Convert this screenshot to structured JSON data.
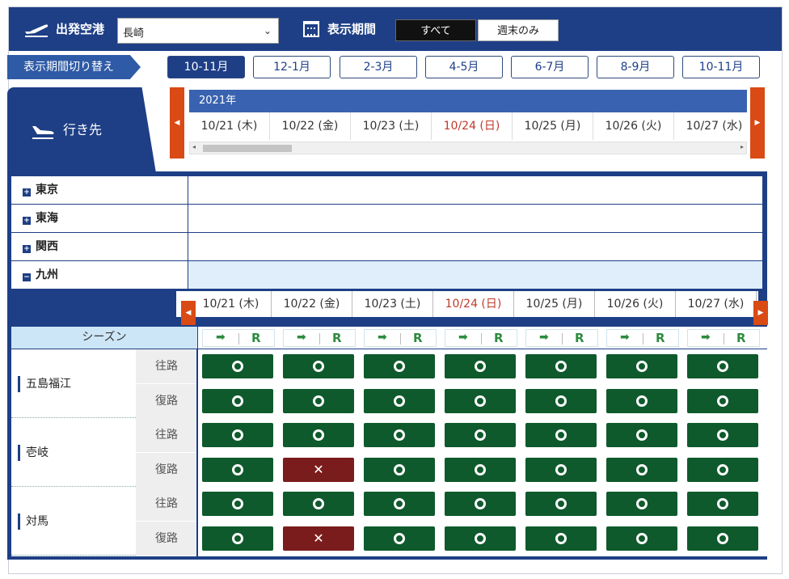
{
  "header": {
    "departure_label": "出発空港",
    "departure_value": "長崎",
    "period_label": "表示期間",
    "segments": [
      {
        "label": "すべて",
        "active": true
      },
      {
        "label": "週末のみ",
        "active": false
      }
    ]
  },
  "period_switch": {
    "label": "表示期間切り替え",
    "buttons": [
      {
        "label": "10-11月",
        "active": true
      },
      {
        "label": "12-1月",
        "active": false
      },
      {
        "label": "2-3月",
        "active": false
      },
      {
        "label": "4-5月",
        "active": false
      },
      {
        "label": "6-7月",
        "active": false
      },
      {
        "label": "8-9月",
        "active": false
      },
      {
        "label": "10-11月",
        "active": false
      }
    ]
  },
  "destination_tab": {
    "label": "行き先"
  },
  "calendar": {
    "year": "2021年",
    "dates": [
      {
        "label": "10/21 (木)",
        "sunday": false
      },
      {
        "label": "10/22 (金)",
        "sunday": false
      },
      {
        "label": "10/23 (土)",
        "sunday": false
      },
      {
        "label": "10/24 (日)",
        "sunday": true
      },
      {
        "label": "10/25 (月)",
        "sunday": false
      },
      {
        "label": "10/26 (火)",
        "sunday": false
      },
      {
        "label": "10/27 (水)",
        "sunday": false
      }
    ]
  },
  "regions": [
    {
      "label": "東京",
      "expanded": false
    },
    {
      "label": "東海",
      "expanded": false
    },
    {
      "label": "関西",
      "expanded": false
    },
    {
      "label": "九州",
      "expanded": true
    }
  ],
  "season": {
    "label": "シーズン",
    "arrow": "➡",
    "r": "R"
  },
  "directions": {
    "outbound": "往路",
    "return": "復路"
  },
  "routes": [
    {
      "name": "五島福江",
      "outbound": [
        "o",
        "o",
        "o",
        "o",
        "o",
        "o",
        "o"
      ],
      "return": [
        "o",
        "o",
        "o",
        "o",
        "o",
        "o",
        "o"
      ]
    },
    {
      "name": "壱岐",
      "outbound": [
        "o",
        "o",
        "o",
        "o",
        "o",
        "o",
        "o"
      ],
      "return": [
        "o",
        "x",
        "o",
        "o",
        "o",
        "o",
        "o"
      ]
    },
    {
      "name": "対馬",
      "outbound": [
        "o",
        "o",
        "o",
        "o",
        "o",
        "o",
        "o"
      ],
      "return": [
        "o",
        "x",
        "o",
        "o",
        "o",
        "o",
        "o"
      ]
    }
  ],
  "colors": {
    "navy": "#1e3f86",
    "ok": "#0e5a2c",
    "ng": "#7b1c1c",
    "arrow_btn": "#d94a14",
    "sunday": "#c0392b"
  }
}
